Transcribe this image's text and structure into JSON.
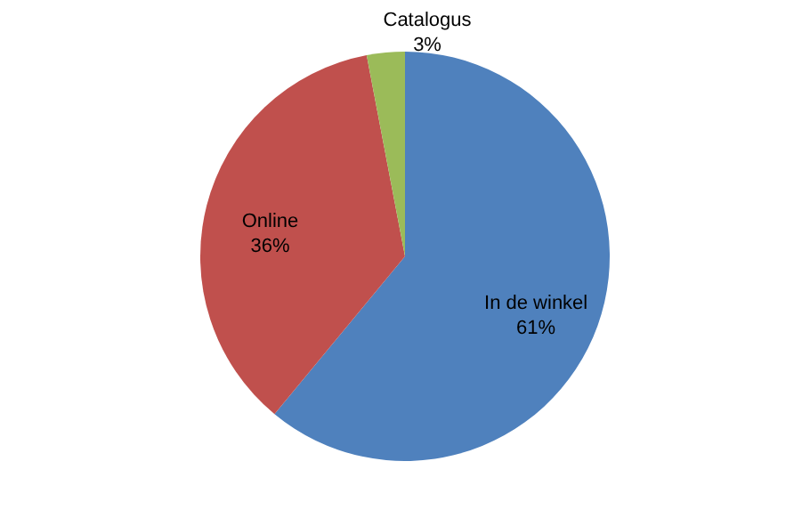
{
  "chart_data": {
    "type": "pie",
    "categories": [
      "In de winkel",
      "Online",
      "Catalogus"
    ],
    "values": [
      61,
      36,
      3
    ],
    "colors": [
      "#4f81bd",
      "#c0504d",
      "#9bbb59"
    ],
    "value_labels": [
      "61%",
      "36%",
      "3%"
    ]
  }
}
